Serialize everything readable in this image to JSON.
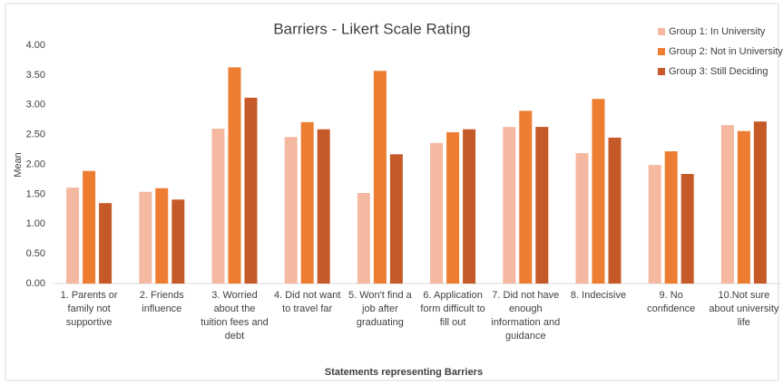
{
  "chart_data": {
    "type": "bar",
    "title": "Barriers - Likert Scale Rating",
    "x_label": "Statements representing Barriers",
    "y_label": "Mean",
    "categories": [
      "1. Parents or family not supportive",
      "2. Friends influence",
      "3. Worried about the tuition fees and debt",
      "4. Did not want to travel far",
      "5. Won't find a job after graduating",
      "6. Application form difficult to fill out",
      "7. Did not have enough information and guidance",
      "8. Indecisive",
      "9. No confidence",
      "10.Not sure about university life"
    ],
    "series": [
      {
        "name": "Group 1: In University",
        "color": "#f4b9a0",
        "values": [
          1.61,
          1.54,
          2.6,
          2.46,
          1.52,
          2.36,
          2.63,
          2.19,
          1.99,
          2.66
        ]
      },
      {
        "name": "Group 2: Not in University",
        "color": "#ed7d31",
        "values": [
          1.89,
          1.6,
          3.63,
          2.71,
          3.57,
          2.54,
          2.9,
          3.1,
          2.22,
          2.56
        ]
      },
      {
        "name": "Group 3: Still Deciding",
        "color": "#c55a28",
        "values": [
          1.35,
          1.41,
          3.12,
          2.59,
          2.17,
          2.59,
          2.63,
          2.45,
          1.84,
          2.72
        ]
      }
    ],
    "ylim": [
      0,
      4
    ],
    "yticks": [
      {
        "value": 0,
        "label": "0.00"
      },
      {
        "value": 0.5,
        "label": "0.50"
      },
      {
        "value": 1,
        "label": "1.00"
      },
      {
        "value": 1.5,
        "label": "1.50"
      },
      {
        "value": 2,
        "label": "2.00"
      },
      {
        "value": 2.5,
        "label": "2.50"
      },
      {
        "value": 3,
        "label": "3.00"
      },
      {
        "value": 3.5,
        "label": "3.50"
      },
      {
        "value": 4,
        "label": "4.00"
      }
    ],
    "grid": false,
    "legend": "top-right"
  }
}
